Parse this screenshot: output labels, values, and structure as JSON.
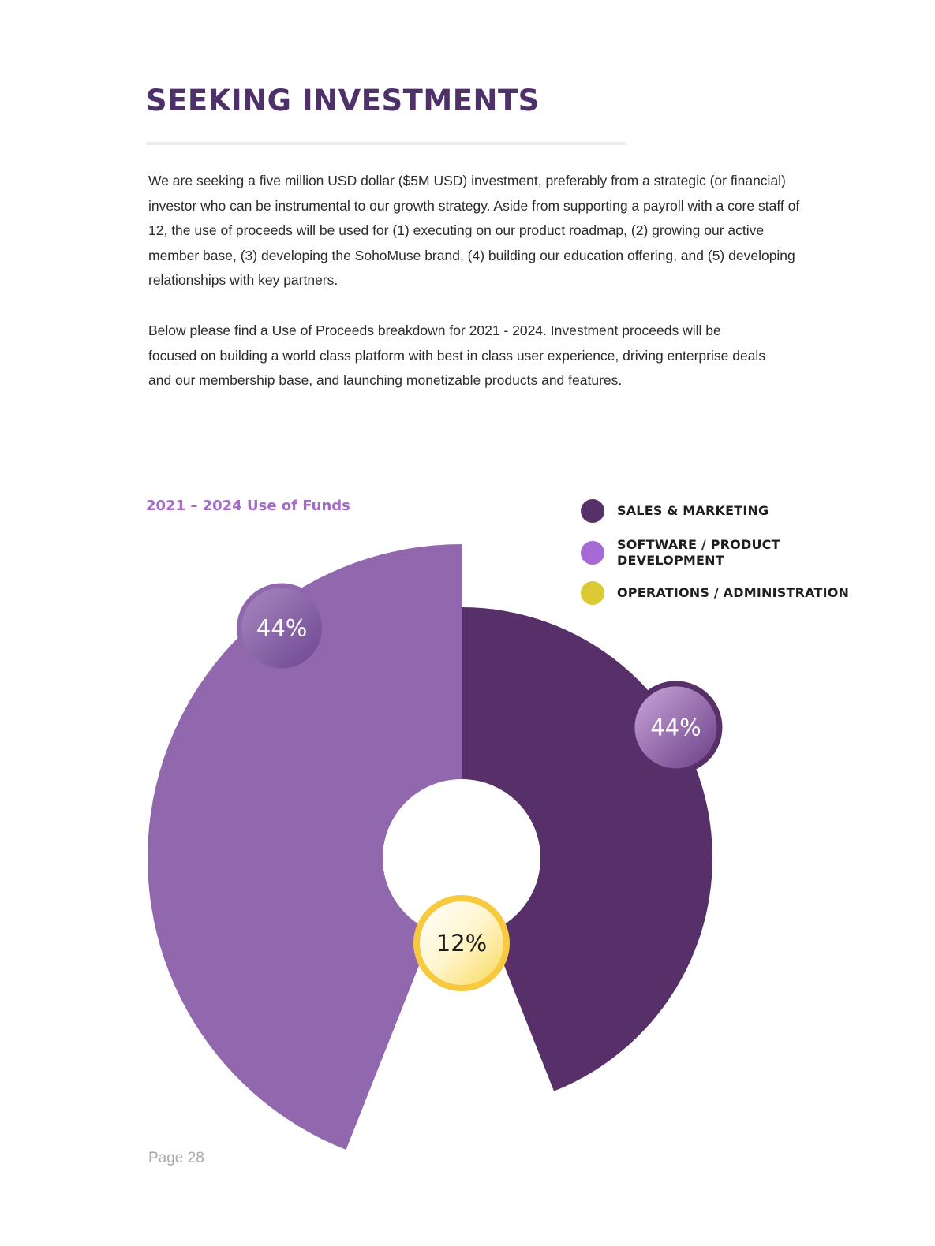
{
  "page": {
    "title": "SEEKING INVESTMENTS",
    "paragraphs": [
      "We are seeking a five million USD dollar ($5M USD) investment, preferably from a strategic (or financial) investor who can be instrumental to our growth strategy. Aside from supporting a payroll with a core staff of 12, the use of proceeds will be used for (1) executing on our product roadmap, (2) growing our active member base, (3) developing the SohoMuse brand, (4) building our education offering, and (5) developing relationships with key partners.",
      "Below please find a Use of Proceeds breakdown for 2021 - 2024. Investment proceeds will be focused on building a world class platform with best in class user experience, driving enterprise deals and our membership base, and launching monetizable products and features."
    ],
    "page_number": "Page 28"
  },
  "legend": [
    {
      "label": "SALES & MARKETING",
      "color": "#573069"
    },
    {
      "label": "SOFTWARE / PRODUCT DEVELOPMENT",
      "color": "#a66ad6"
    },
    {
      "label": "OPERATIONS / ADMINISTRATION",
      "color": "#dcca34"
    }
  ],
  "chart_data": {
    "type": "pie",
    "variant": "rose-donut",
    "title": "2021 – 2024 Use of Funds",
    "legend_position": "top-right",
    "slices": [
      {
        "name": "SALES & MARKETING",
        "value": 44,
        "label": "44%",
        "color": "#573069",
        "badge_ring": "#573069"
      },
      {
        "name": "OPERATIONS / ADMINISTRATION",
        "value": 12,
        "label": "12%",
        "color": "#fbcf4c",
        "badge_ring": "#f6c93e"
      },
      {
        "name": "SOFTWARE / PRODUCT DEVELOPMENT",
        "value": 44,
        "label": "44%",
        "color": "#9168ad",
        "badge_ring": "#9168ad"
      }
    ]
  }
}
